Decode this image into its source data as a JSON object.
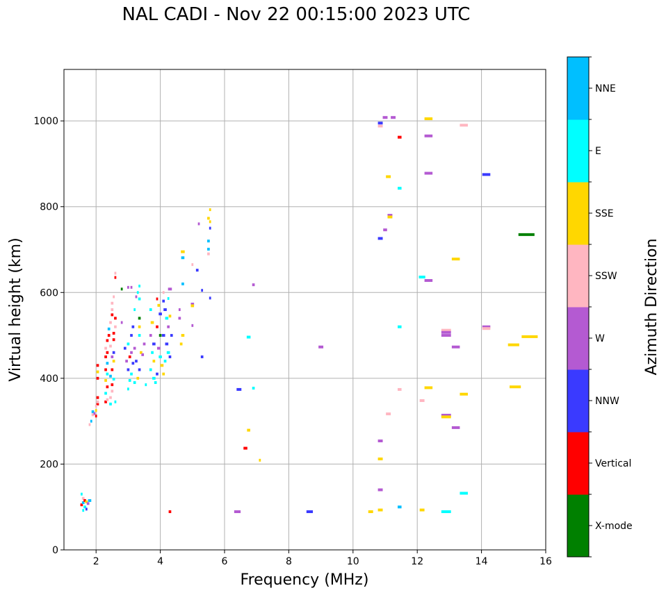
{
  "chart_data": {
    "type": "scatter",
    "title": "NAL CADI - Nov 22 00:15:00 2023 UTC",
    "xlabel": "Frequency (MHz)",
    "ylabel": "Virtual height (km)",
    "xlim": [
      1,
      16
    ],
    "ylim": [
      0,
      1120
    ],
    "xticks": [
      2,
      4,
      6,
      8,
      10,
      12,
      14,
      16
    ],
    "yticks": [
      0,
      200,
      400,
      600,
      800,
      1000
    ],
    "grid": true,
    "colorbar": {
      "label": "Azimuth Direction",
      "categories": [
        {
          "name": "X-mode",
          "color": "#008000"
        },
        {
          "name": "Vertical",
          "color": "#ff0000"
        },
        {
          "name": "NNW",
          "color": "#3a3aff"
        },
        {
          "name": "W",
          "color": "#b45ad2"
        },
        {
          "name": "SSW",
          "color": "#ffb6c1"
        },
        {
          "name": "SSE",
          "color": "#ffd700"
        },
        {
          "name": "E",
          "color": "#00ffff"
        },
        {
          "name": "NNE",
          "color": "#00bfff"
        }
      ]
    },
    "point_format": [
      "frequency_mhz",
      "height_km",
      "direction_index",
      "width_mhz"
    ],
    "points": [
      [
        10.85,
        995,
        2,
        0.15
      ],
      [
        10.85,
        988,
        4,
        0.15
      ],
      [
        11.0,
        1008,
        3,
        0.15
      ],
      [
        11.25,
        1008,
        3,
        0.15
      ],
      [
        12.35,
        1005,
        5,
        0.25
      ],
      [
        11.45,
        962,
        1,
        0.12
      ],
      [
        12.35,
        965,
        3,
        0.25
      ],
      [
        13.45,
        990,
        4,
        0.25
      ],
      [
        11.1,
        870,
        5,
        0.15
      ],
      [
        11.45,
        843,
        6,
        0.12
      ],
      [
        12.35,
        878,
        3,
        0.25
      ],
      [
        14.15,
        875,
        2,
        0.25
      ],
      [
        11.15,
        780,
        3,
        0.15
      ],
      [
        11.15,
        776,
        5,
        0.15
      ],
      [
        11.0,
        746,
        3,
        0.12
      ],
      [
        10.85,
        726,
        2,
        0.15
      ],
      [
        15.4,
        735,
        0,
        0.5
      ],
      [
        13.2,
        678,
        5,
        0.25
      ],
      [
        12.15,
        636,
        6,
        0.2
      ],
      [
        12.35,
        628,
        3,
        0.25
      ],
      [
        11.45,
        520,
        6,
        0.12
      ],
      [
        12.9,
        512,
        4,
        0.3
      ],
      [
        12.9,
        507,
        3,
        0.3
      ],
      [
        12.9,
        500,
        3,
        0.3
      ],
      [
        13.2,
        473,
        3,
        0.25
      ],
      [
        14.15,
        520,
        3,
        0.25
      ],
      [
        14.15,
        516,
        4,
        0.25
      ],
      [
        15.0,
        478,
        5,
        0.35
      ],
      [
        15.5,
        497,
        5,
        0.5
      ],
      [
        15.05,
        380,
        5,
        0.35
      ],
      [
        12.35,
        378,
        5,
        0.25
      ],
      [
        13.45,
        363,
        5,
        0.25
      ],
      [
        11.45,
        374,
        4,
        0.12
      ],
      [
        12.15,
        348,
        4,
        0.15
      ],
      [
        11.1,
        317,
        4,
        0.15
      ],
      [
        12.9,
        314,
        3,
        0.3
      ],
      [
        12.9,
        310,
        5,
        0.3
      ],
      [
        13.2,
        285,
        3,
        0.25
      ],
      [
        10.85,
        254,
        3,
        0.15
      ],
      [
        10.85,
        212,
        5,
        0.15
      ],
      [
        10.85,
        140,
        3,
        0.15
      ],
      [
        13.45,
        132,
        6,
        0.25
      ],
      [
        11.45,
        100,
        7,
        0.12
      ],
      [
        10.85,
        93,
        5,
        0.15
      ],
      [
        10.55,
        89,
        5,
        0.15
      ],
      [
        12.15,
        93,
        5,
        0.15
      ],
      [
        12.9,
        89,
        6,
        0.3
      ],
      [
        8.65,
        89,
        2,
        0.2
      ],
      [
        6.4,
        89,
        3,
        0.2
      ],
      [
        4.3,
        89,
        1,
        0.08
      ],
      [
        9.0,
        473,
        3,
        0.15
      ],
      [
        6.9,
        618,
        3,
        0.08
      ],
      [
        6.75,
        496,
        6,
        0.12
      ],
      [
        6.9,
        377,
        6,
        0.08
      ],
      [
        6.45,
        374,
        2,
        0.15
      ],
      [
        6.75,
        279,
        5,
        0.1
      ],
      [
        6.65,
        237,
        1,
        0.12
      ],
      [
        7.1,
        209,
        5,
        0.06
      ],
      [
        5.55,
        793,
        5,
        0.06
      ],
      [
        5.5,
        773,
        5,
        0.08
      ],
      [
        5.55,
        765,
        5,
        0.06
      ],
      [
        5.2,
        760,
        3,
        0.06
      ],
      [
        5.55,
        750,
        2,
        0.06
      ],
      [
        5.5,
        720,
        7,
        0.08
      ],
      [
        5.5,
        701,
        7,
        0.08
      ],
      [
        5.5,
        690,
        4,
        0.08
      ],
      [
        4.7,
        695,
        5,
        0.12
      ],
      [
        4.7,
        681,
        7,
        0.1
      ],
      [
        5.0,
        665,
        4,
        0.06
      ],
      [
        5.15,
        652,
        2,
        0.08
      ],
      [
        5.3,
        605,
        2,
        0.06
      ],
      [
        5.55,
        587,
        2,
        0.06
      ],
      [
        4.3,
        608,
        3,
        0.12
      ],
      [
        4.7,
        620,
        7,
        0.08
      ],
      [
        5.0,
        573,
        3,
        0.1
      ],
      [
        5.0,
        569,
        5,
        0.1
      ],
      [
        5.0,
        523,
        3,
        0.06
      ],
      [
        5.3,
        450,
        2,
        0.08
      ],
      [
        4.7,
        500,
        5,
        0.1
      ],
      [
        1.55,
        105,
        1,
        0.08
      ],
      [
        1.6,
        110,
        7,
        0.08
      ],
      [
        1.6,
        120,
        4,
        0.08
      ],
      [
        1.65,
        100,
        6,
        0.08
      ],
      [
        1.65,
        115,
        1,
        0.08
      ],
      [
        1.7,
        112,
        5,
        0.08
      ],
      [
        1.75,
        108,
        3,
        0.08
      ],
      [
        1.8,
        115,
        7,
        0.1
      ],
      [
        1.55,
        130,
        6,
        0.06
      ],
      [
        1.6,
        92,
        6,
        0.06
      ],
      [
        1.7,
        95,
        2,
        0.06
      ],
      [
        1.8,
        292,
        4,
        0.06
      ],
      [
        1.85,
        300,
        7,
        0.06
      ],
      [
        1.9,
        315,
        4,
        0.08
      ],
      [
        1.9,
        322,
        7,
        0.08
      ],
      [
        1.95,
        318,
        3,
        0.06
      ],
      [
        2.0,
        325,
        5,
        0.06
      ],
      [
        2.0,
        312,
        1,
        0.06
      ],
      [
        2.05,
        340,
        1,
        0.08
      ],
      [
        2.05,
        355,
        1,
        0.08
      ],
      [
        2.05,
        345,
        4,
        0.08
      ],
      [
        2.05,
        400,
        1,
        0.08
      ],
      [
        2.05,
        415,
        5,
        0.08
      ],
      [
        2.05,
        430,
        1,
        0.08
      ],
      [
        2.0,
        335,
        4,
        0.06
      ],
      [
        2.3,
        345,
        1,
        0.08
      ],
      [
        2.35,
        350,
        4,
        0.08
      ],
      [
        2.3,
        365,
        6,
        0.08
      ],
      [
        2.35,
        380,
        1,
        0.08
      ],
      [
        2.3,
        395,
        5,
        0.08
      ],
      [
        2.35,
        410,
        6,
        0.08
      ],
      [
        2.3,
        420,
        1,
        0.08
      ],
      [
        2.35,
        435,
        7,
        0.08
      ],
      [
        2.3,
        450,
        1,
        0.08
      ],
      [
        2.35,
        460,
        1,
        0.08
      ],
      [
        2.3,
        470,
        4,
        0.08
      ],
      [
        2.35,
        488,
        1,
        0.08
      ],
      [
        2.4,
        500,
        1,
        0.08
      ],
      [
        2.4,
        515,
        7,
        0.08
      ],
      [
        2.45,
        530,
        4,
        0.08
      ],
      [
        2.5,
        548,
        1,
        0.08
      ],
      [
        2.5,
        560,
        4,
        0.08
      ],
      [
        2.5,
        575,
        4,
        0.08
      ],
      [
        2.55,
        590,
        4,
        0.06
      ],
      [
        2.6,
        635,
        1,
        0.06
      ],
      [
        2.6,
        645,
        4,
        0.06
      ],
      [
        2.45,
        340,
        6,
        0.08
      ],
      [
        2.45,
        355,
        4,
        0.08
      ],
      [
        2.5,
        370,
        4,
        0.08
      ],
      [
        2.5,
        385,
        1,
        0.08
      ],
      [
        2.55,
        398,
        6,
        0.08
      ],
      [
        2.45,
        405,
        7,
        0.08
      ],
      [
        2.5,
        420,
        1,
        0.08
      ],
      [
        2.55,
        440,
        5,
        0.08
      ],
      [
        2.5,
        450,
        3,
        0.08
      ],
      [
        2.45,
        475,
        4,
        0.08
      ],
      [
        2.55,
        490,
        1,
        0.08
      ],
      [
        2.55,
        505,
        1,
        0.08
      ],
      [
        2.6,
        520,
        4,
        0.08
      ],
      [
        2.6,
        540,
        1,
        0.08
      ],
      [
        2.6,
        345,
        6,
        0.06
      ],
      [
        2.55,
        460,
        2,
        0.08
      ],
      [
        2.8,
        608,
        0,
        0.06
      ],
      [
        2.8,
        530,
        3,
        0.06
      ],
      [
        2.9,
        470,
        2,
        0.08
      ],
      [
        2.95,
        440,
        3,
        0.08
      ],
      [
        3.0,
        420,
        2,
        0.08
      ],
      [
        3.05,
        450,
        1,
        0.08
      ],
      [
        3.0,
        480,
        6,
        0.08
      ],
      [
        3.1,
        500,
        2,
        0.08
      ],
      [
        3.1,
        460,
        3,
        0.08
      ],
      [
        3.15,
        435,
        2,
        0.08
      ],
      [
        3.1,
        410,
        6,
        0.08
      ],
      [
        3.05,
        395,
        6,
        0.08
      ],
      [
        3.0,
        375,
        6,
        0.06
      ],
      [
        3.15,
        520,
        2,
        0.08
      ],
      [
        3.2,
        470,
        3,
        0.08
      ],
      [
        3.25,
        440,
        2,
        0.08
      ],
      [
        3.2,
        560,
        6,
        0.06
      ],
      [
        3.25,
        590,
        3,
        0.06
      ],
      [
        3.1,
        612,
        3,
        0.06
      ],
      [
        3.0,
        612,
        3,
        0.06
      ],
      [
        3.3,
        600,
        6,
        0.06
      ],
      [
        3.35,
        615,
        6,
        0.06
      ],
      [
        3.35,
        585,
        6,
        0.08
      ],
      [
        3.35,
        540,
        0,
        0.08
      ],
      [
        3.35,
        500,
        6,
        0.08
      ],
      [
        3.4,
        460,
        5,
        0.08
      ],
      [
        3.35,
        420,
        2,
        0.08
      ],
      [
        3.3,
        400,
        5,
        0.08
      ],
      [
        3.45,
        455,
        3,
        0.08
      ],
      [
        3.5,
        480,
        3,
        0.08
      ],
      [
        3.2,
        390,
        6,
        0.08
      ],
      [
        3.35,
        520,
        5,
        0.08
      ],
      [
        3.55,
        385,
        6,
        0.06
      ],
      [
        3.7,
        560,
        6,
        0.08
      ],
      [
        3.75,
        530,
        5,
        0.1
      ],
      [
        3.7,
        500,
        3,
        0.08
      ],
      [
        3.8,
        480,
        2,
        0.1
      ],
      [
        3.75,
        460,
        6,
        0.08
      ],
      [
        3.8,
        440,
        5,
        0.08
      ],
      [
        3.7,
        420,
        6,
        0.08
      ],
      [
        3.8,
        400,
        6,
        0.1
      ],
      [
        3.85,
        390,
        6,
        0.08
      ],
      [
        3.9,
        585,
        1,
        0.06
      ],
      [
        3.95,
        570,
        5,
        0.08
      ],
      [
        4.0,
        550,
        2,
        0.1
      ],
      [
        3.9,
        520,
        1,
        0.08
      ],
      [
        4.0,
        500,
        0,
        0.08
      ],
      [
        3.95,
        470,
        3,
        0.1
      ],
      [
        4.0,
        450,
        6,
        0.1
      ],
      [
        4.05,
        430,
        5,
        0.1
      ],
      [
        3.9,
        410,
        2,
        0.08
      ],
      [
        4.1,
        580,
        2,
        0.08
      ],
      [
        4.15,
        560,
        2,
        0.1
      ],
      [
        4.2,
        540,
        6,
        0.1
      ],
      [
        4.25,
        520,
        3,
        0.08
      ],
      [
        4.1,
        500,
        2,
        0.1
      ],
      [
        4.2,
        480,
        2,
        0.1
      ],
      [
        4.25,
        460,
        6,
        0.1
      ],
      [
        4.15,
        440,
        6,
        0.08
      ],
      [
        4.3,
        450,
        2,
        0.08
      ],
      [
        4.3,
        545,
        5,
        0.08
      ],
      [
        4.35,
        500,
        2,
        0.08
      ],
      [
        4.1,
        410,
        5,
        0.08
      ],
      [
        4.6,
        540,
        3,
        0.08
      ],
      [
        4.6,
        560,
        3,
        0.06
      ],
      [
        4.65,
        480,
        5,
        0.08
      ],
      [
        4.25,
        586,
        6,
        0.06
      ],
      [
        4.1,
        600,
        4,
        0.06
      ]
    ]
  }
}
